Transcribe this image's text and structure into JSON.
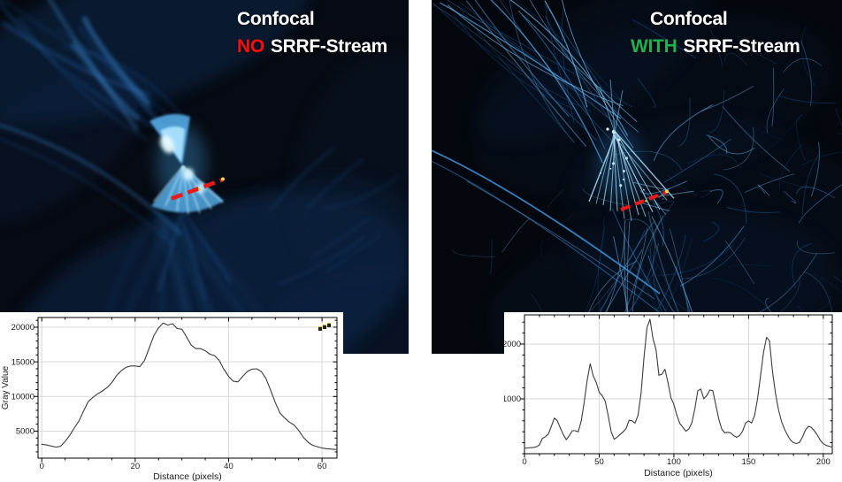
{
  "figure": {
    "background": "#ffffff",
    "roi_line_color": "#e81a1a",
    "roi_marker_yellow": "#ffd84a",
    "roi_marker_green": "#b8d24a"
  },
  "left_image": {
    "title_line1": "Confocal",
    "title_line2_highlight": "NO",
    "title_line2_rest": "SRRF-Stream",
    "highlight_color": "#ff0d0d",
    "text_color": "#ffffff"
  },
  "right_image": {
    "title_line1": "Confocal",
    "title_line2_highlight": "WITH",
    "title_line2_rest": "SRRF-Stream",
    "highlight_color": "#1fb24f",
    "text_color": "#ffffff"
  },
  "chart_data": [
    {
      "id": "left_profile",
      "type": "line",
      "title": "",
      "xlabel": "Distance (pixels)",
      "ylabel": "Gray Value",
      "xlim": [
        -0.8,
        63.2
      ],
      "ylim": [
        1100,
        21400
      ],
      "xticks": [
        0,
        20,
        40,
        60
      ],
      "yticks": [
        5000,
        10000,
        15000,
        20000
      ],
      "x_minor_step": 5,
      "y_minor_step": 1000,
      "grid": true,
      "grid_color": "#d8d8d8",
      "line_color": "#3c3c3c",
      "x": [
        0,
        1,
        2,
        3,
        4,
        5,
        6,
        7,
        8,
        9,
        10,
        11,
        12,
        13,
        14,
        15,
        16,
        17,
        18,
        19,
        20,
        21,
        22,
        23,
        24,
        25,
        26,
        27,
        28,
        29,
        30,
        31,
        32,
        33,
        34,
        35,
        36,
        37,
        38,
        39,
        40,
        41,
        42,
        43,
        44,
        45,
        46,
        47,
        48,
        49,
        50,
        51,
        52,
        53,
        54,
        55,
        56,
        57,
        58,
        59,
        60,
        61,
        62,
        63
      ],
      "y": [
        3100,
        3000,
        2850,
        2700,
        2800,
        3500,
        4400,
        5500,
        6500,
        8000,
        9300,
        9900,
        10400,
        10800,
        11300,
        12000,
        13000,
        13700,
        14200,
        14400,
        14400,
        14300,
        15200,
        17000,
        18800,
        19900,
        20600,
        20300,
        20500,
        19800,
        19700,
        18600,
        17400,
        16900,
        16900,
        16600,
        16100,
        15900,
        15200,
        13900,
        12900,
        12200,
        12100,
        12900,
        13600,
        13950,
        14000,
        13600,
        12600,
        10900,
        9100,
        7600,
        6900,
        6300,
        5900,
        5100,
        4100,
        3400,
        2950,
        2750,
        2550,
        2450,
        2400,
        2350
      ]
    },
    {
      "id": "right_profile",
      "type": "line",
      "title": "",
      "xlabel": "Distance (pixels)",
      "ylabel": "",
      "xlim": [
        0,
        206
      ],
      "ylim": [
        0,
        2532
      ],
      "xticks": [
        0,
        50,
        100,
        150,
        200
      ],
      "yticks": [
        1000,
        2000
      ],
      "x_minor_step": 10,
      "y_minor_step": 200,
      "grid": true,
      "grid_color": "#d8d8d8",
      "line_color": "#3c3c3c",
      "x": [
        0,
        2,
        4,
        6,
        8,
        10,
        12,
        14,
        16,
        18,
        20,
        22,
        24,
        26,
        28,
        30,
        32,
        34,
        36,
        38,
        40,
        42,
        44,
        46,
        48,
        50,
        52,
        54,
        56,
        58,
        60,
        62,
        64,
        66,
        68,
        70,
        72,
        74,
        76,
        78,
        80,
        82,
        84,
        86,
        88,
        90,
        92,
        94,
        96,
        98,
        100,
        102,
        104,
        106,
        108,
        110,
        112,
        114,
        116,
        118,
        120,
        122,
        124,
        126,
        128,
        130,
        132,
        134,
        136,
        138,
        140,
        142,
        144,
        146,
        148,
        150,
        152,
        154,
        156,
        158,
        160,
        162,
        164,
        166,
        168,
        170,
        172,
        174,
        176,
        178,
        180,
        182,
        184,
        186,
        188,
        190,
        192,
        194,
        196,
        198,
        200,
        202,
        204,
        206
      ],
      "y": [
        100,
        105,
        110,
        115,
        125,
        160,
        280,
        310,
        360,
        500,
        650,
        600,
        470,
        350,
        255,
        330,
        420,
        420,
        400,
        600,
        950,
        1350,
        1640,
        1420,
        1300,
        1120,
        1060,
        960,
        700,
        400,
        265,
        300,
        350,
        400,
        460,
        610,
        600,
        560,
        700,
        1100,
        1750,
        2300,
        2450,
        2100,
        1900,
        1430,
        1450,
        1540,
        1300,
        1020,
        900,
        700,
        550,
        480,
        410,
        450,
        560,
        820,
        1150,
        1180,
        1000,
        1060,
        1160,
        1150,
        900,
        640,
        450,
        380,
        390,
        380,
        330,
        300,
        330,
        410,
        560,
        600,
        560,
        700,
        1000,
        1420,
        1850,
        2120,
        2060,
        1500,
        1100,
        800,
        590,
        450,
        340,
        250,
        200,
        185,
        205,
        300,
        430,
        500,
        480,
        420,
        340,
        245,
        180,
        150,
        135,
        120
      ]
    }
  ]
}
